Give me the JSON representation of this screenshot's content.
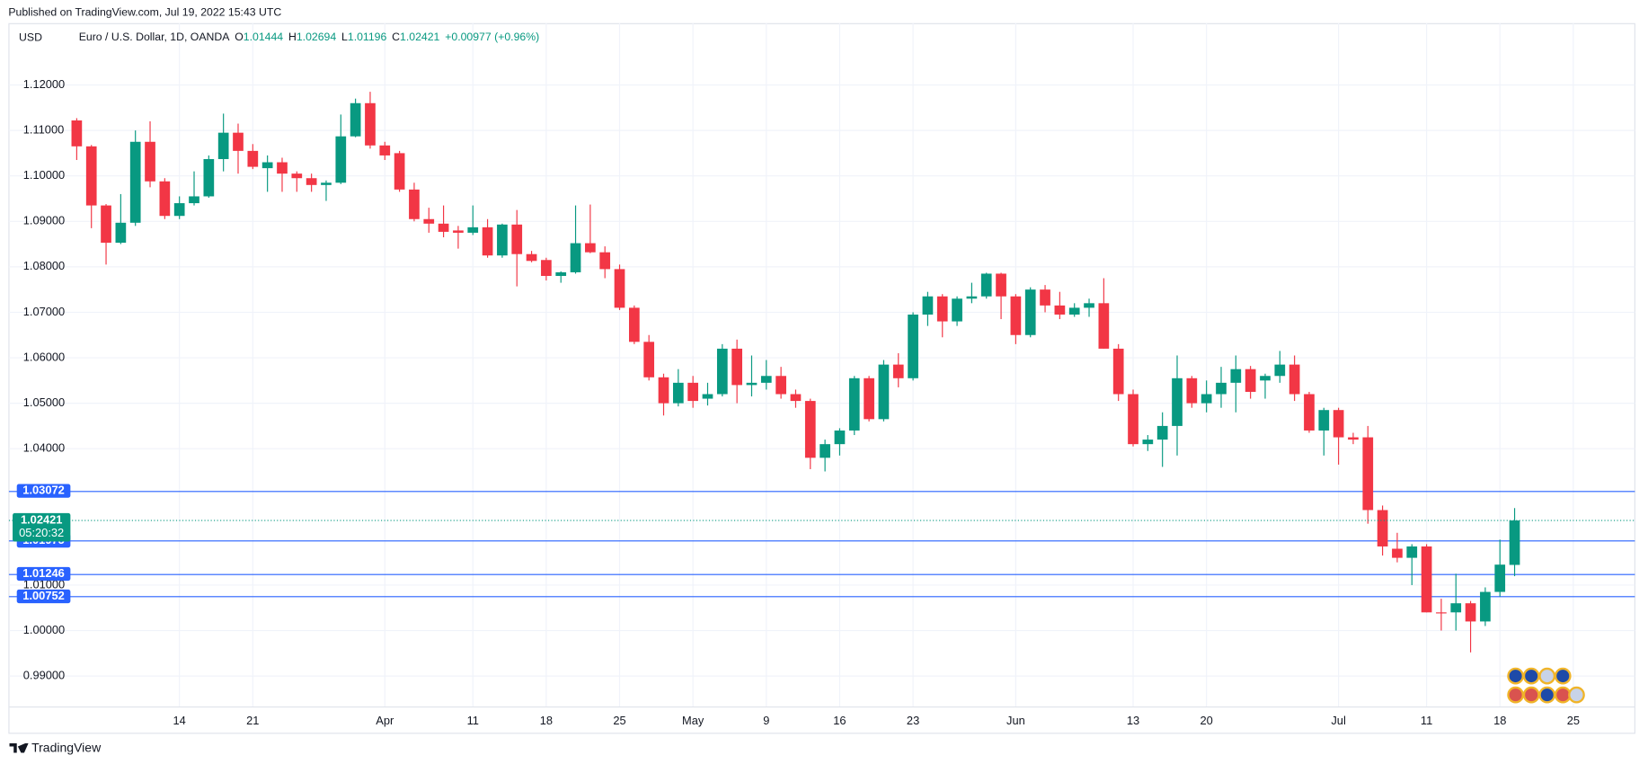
{
  "published": "Published on TradingView.com, Jul 19, 2022 15:43 UTC",
  "footer": "TradingView",
  "chart_data": {
    "type": "candlestick",
    "currency": "USD",
    "title": "Euro / U.S. Dollar, 1D, OANDA",
    "legend_labels": {
      "open": "O",
      "high": "H",
      "low": "L",
      "close": "C"
    },
    "change_label": "+0.00977 (+0.96%)",
    "countdown": "05:20:32",
    "up_color": "#089981",
    "down_color": "#f23645",
    "grid": true,
    "categories": [
      null,
      null,
      null,
      null,
      null,
      null,
      null,
      "14",
      null,
      null,
      null,
      null,
      "21",
      null,
      null,
      null,
      null,
      null,
      null,
      null,
      null,
      "Apr",
      null,
      null,
      null,
      null,
      null,
      "11",
      null,
      null,
      null,
      null,
      "18",
      null,
      null,
      null,
      null,
      "25",
      null,
      null,
      null,
      null,
      "May",
      null,
      null,
      null,
      null,
      "9",
      null,
      null,
      null,
      null,
      "16",
      null,
      null,
      null,
      null,
      "23",
      null,
      null,
      null,
      null,
      null,
      null,
      "Jun",
      null,
      null,
      null,
      null,
      null,
      null,
      null,
      "13",
      null,
      null,
      null,
      null,
      "20",
      null,
      null,
      null,
      null,
      null,
      null,
      null,
      null,
      "Jul",
      null,
      null,
      null,
      null,
      null,
      "11",
      null,
      null,
      null,
      null,
      "18",
      null,
      null,
      null,
      null,
      "25"
    ],
    "open": [
      1.1122,
      1.1065,
      1.0935,
      1.0853,
      1.0897,
      1.1075,
      1.0988,
      1.0912,
      1.094,
      1.0955,
      1.1037,
      1.1095,
      1.1055,
      1.1017,
      1.103,
      1.1005,
      1.0995,
      1.098,
      1.0985,
      1.1087,
      1.116,
      1.1067,
      1.105,
      1.097,
      1.0905,
      1.0895,
      1.088,
      1.0875,
      1.0887,
      1.0825,
      1.0893,
      1.0828,
      1.0815,
      1.078,
      1.0788,
      1.0852,
      1.0832,
      1.0795,
      1.071,
      1.0635,
      1.0557,
      1.05,
      1.0545,
      1.051,
      1.052,
      1.062,
      1.054,
      1.0545,
      1.056,
      1.052,
      1.0505,
      1.038,
      1.041,
      1.044,
      1.0555,
      1.0465,
      1.0585,
      1.0555,
      1.0695,
      1.0735,
      1.068,
      1.073,
      1.0735,
      1.0785,
      1.0735,
      1.065,
      1.075,
      1.0715,
      1.0695,
      1.071,
      1.072,
      1.062,
      1.052,
      1.041,
      1.042,
      1.045,
      1.0555,
      1.05,
      1.052,
      1.0545,
      1.0575,
      1.055,
      1.056,
      1.0585,
      1.052,
      1.044,
      1.0485,
      1.0425,
      1.0425,
      1.0265,
      1.018,
      1.016,
      1.0185,
      1.004,
      1.004,
      1.006,
      1.002,
      1.0085,
      1.01444,
      null,
      null,
      null,
      null
    ],
    "high": [
      1.1127,
      1.1068,
      1.0938,
      1.096,
      1.11,
      1.112,
      1.0995,
      1.0955,
      1.101,
      1.1045,
      1.1137,
      1.1115,
      1.107,
      1.1045,
      1.104,
      1.101,
      1.1005,
      1.099,
      1.1135,
      1.117,
      1.1185,
      1.1075,
      1.1055,
      1.0985,
      1.093,
      1.0935,
      1.089,
      1.0935,
      1.0905,
      1.0895,
      1.0925,
      1.0835,
      1.082,
      1.079,
      1.0935,
      1.0937,
      1.0845,
      1.0805,
      1.0715,
      1.065,
      1.0565,
      1.0575,
      1.056,
      1.0545,
      1.063,
      1.064,
      1.0605,
      1.0595,
      1.058,
      1.053,
      1.051,
      1.042,
      1.0445,
      1.056,
      1.056,
      1.0595,
      1.061,
      1.07,
      1.0745,
      1.074,
      1.0735,
      1.0765,
      1.0787,
      1.0787,
      1.074,
      1.0755,
      1.076,
      1.0745,
      1.072,
      1.073,
      1.0775,
      1.063,
      1.053,
      1.043,
      1.048,
      1.0605,
      1.056,
      1.055,
      1.058,
      1.0605,
      1.0582,
      1.0565,
      1.0615,
      1.0605,
      1.0525,
      1.049,
      1.049,
      1.0435,
      1.045,
      1.0275,
      1.0215,
      1.019,
      1.019,
      1.007,
      1.0125,
      1.0065,
      1.0095,
      1.02,
      1.02694,
      null,
      null,
      null,
      null
    ],
    "low": [
      1.1035,
      1.0885,
      1.0805,
      1.085,
      1.089,
      1.0975,
      1.0905,
      1.0905,
      1.0935,
      1.0952,
      1.101,
      1.1005,
      1.1015,
      1.0965,
      1.0965,
      1.0965,
      1.0965,
      1.0945,
      1.0982,
      1.1085,
      1.106,
      1.1035,
      1.0965,
      1.09,
      1.0875,
      1.0865,
      1.084,
      1.087,
      1.082,
      1.082,
      1.0757,
      1.081,
      1.077,
      1.0765,
      1.0785,
      1.083,
      1.0775,
      1.0705,
      1.063,
      1.055,
      1.0473,
      1.0493,
      1.049,
      1.0495,
      1.0515,
      1.05,
      1.0515,
      1.053,
      1.051,
      1.049,
      1.0355,
      1.035,
      1.0385,
      1.043,
      1.046,
      1.046,
      1.0535,
      1.055,
      1.067,
      1.0645,
      1.067,
      1.072,
      1.073,
      1.0685,
      1.063,
      1.0645,
      1.07,
      1.0685,
      1.069,
      1.069,
      1.062,
      1.0505,
      1.0405,
      1.0395,
      1.036,
      1.0385,
      1.049,
      1.048,
      1.049,
      1.048,
      1.051,
      1.051,
      1.0545,
      1.0505,
      1.0435,
      1.0385,
      1.0365,
      1.041,
      1.0235,
      1.0165,
      1.015,
      1.01,
      1.004,
      1.0,
      1.0,
      0.9952,
      1.001,
      1.0075,
      1.01196,
      null,
      null,
      null,
      null
    ],
    "close": [
      1.1065,
      1.0935,
      1.0853,
      1.0897,
      1.1075,
      1.0988,
      1.0912,
      1.094,
      1.0955,
      1.1037,
      1.1095,
      1.1055,
      1.102,
      1.103,
      1.1005,
      1.0995,
      1.098,
      1.0985,
      1.1087,
      1.116,
      1.1067,
      1.1045,
      1.097,
      1.0905,
      1.0895,
      1.0877,
      1.0875,
      1.0887,
      1.0825,
      1.0893,
      1.0828,
      1.0813,
      1.078,
      1.0788,
      1.0852,
      1.0832,
      1.0795,
      1.071,
      1.0635,
      1.0557,
      1.05,
      1.0545,
      1.0505,
      1.052,
      1.062,
      1.054,
      1.0545,
      1.056,
      1.052,
      1.0505,
      1.038,
      1.041,
      1.044,
      1.0555,
      1.0465,
      1.0585,
      1.0555,
      1.0695,
      1.0735,
      1.068,
      1.073,
      1.0735,
      1.0785,
      1.0735,
      1.065,
      1.075,
      1.0715,
      1.0695,
      1.071,
      1.072,
      1.062,
      1.052,
      1.041,
      1.042,
      1.045,
      1.0555,
      1.05,
      1.052,
      1.0545,
      1.0575,
      1.0525,
      1.056,
      1.0585,
      1.052,
      1.044,
      1.0485,
      1.0425,
      1.042,
      1.0265,
      1.0185,
      1.016,
      1.0185,
      1.004,
      1.0038,
      1.006,
      1.002,
      1.0085,
      1.0145,
      1.02421,
      null,
      null,
      null,
      null
    ],
    "ylim": [
      0.9833,
      1.1336
    ],
    "yticks": [
      {
        "value": 0.99,
        "label": "0.99000"
      },
      {
        "value": 1.0,
        "label": "1.00000"
      },
      {
        "value": 1.01,
        "label": "1.01000"
      },
      {
        "value": 1.04,
        "label": "1.04000"
      },
      {
        "value": 1.05,
        "label": "1.05000"
      },
      {
        "value": 1.06,
        "label": "1.06000"
      },
      {
        "value": 1.07,
        "label": "1.07000"
      },
      {
        "value": 1.08,
        "label": "1.08000"
      },
      {
        "value": 1.09,
        "label": "1.09000"
      },
      {
        "value": 1.1,
        "label": "1.10000"
      },
      {
        "value": 1.11,
        "label": "1.11000"
      },
      {
        "value": 1.12,
        "label": "1.12000"
      }
    ],
    "levels": {
      "color": "#2962ff",
      "values": [
        1.03072,
        1.01975,
        1.01246,
        1.00752
      ]
    }
  }
}
